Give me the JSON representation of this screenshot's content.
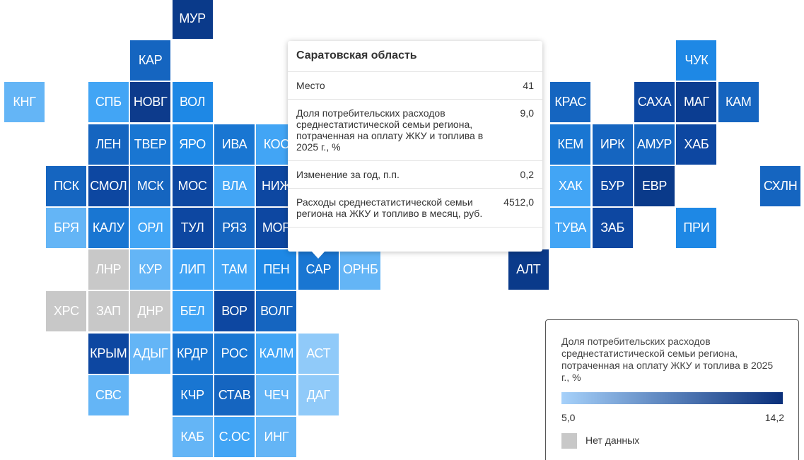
{
  "tiles": [
    {
      "label": "МУР",
      "color": "#0a3a8a"
    },
    {
      "label": "КАР",
      "color": "#1565c0"
    },
    {
      "label": "ЧУК",
      "color": "#1e88e5"
    },
    {
      "label": "КНГ",
      "color": "#64b5f6"
    },
    {
      "label": "СПБ",
      "color": "#42a5f5"
    },
    {
      "label": "НОВГ",
      "color": "#0d3b8c"
    },
    {
      "label": "ВОЛ",
      "color": "#1e88e5"
    },
    {
      "label": "КРАС",
      "color": "#1565c0"
    },
    {
      "label": "САХА",
      "color": "#0d47a1"
    },
    {
      "label": "МАГ",
      "color": "#0b3d91"
    },
    {
      "label": "КАМ",
      "color": "#1565c0"
    },
    {
      "label": "ЛЕН",
      "color": "#1565c0"
    },
    {
      "label": "ТВЕР",
      "color": "#1976d2"
    },
    {
      "label": "ЯРО",
      "color": "#1e88e5"
    },
    {
      "label": "ИВА",
      "color": "#1976d2"
    },
    {
      "label": "КОС",
      "color": "#42a5f5"
    },
    {
      "label": "КЕМ",
      "color": "#1976d2"
    },
    {
      "label": "ИРК",
      "color": "#1565c0"
    },
    {
      "label": "АМУР",
      "color": "#1565c0"
    },
    {
      "label": "ХАБ",
      "color": "#0d47a1"
    },
    {
      "label": "ПСК",
      "color": "#1565c0"
    },
    {
      "label": "СМОЛ",
      "color": "#0d47a1"
    },
    {
      "label": "МСК",
      "color": "#1565c0"
    },
    {
      "label": "МОС",
      "color": "#0d47a1"
    },
    {
      "label": "ВЛА",
      "color": "#42a5f5"
    },
    {
      "label": "НИЖ",
      "color": "#0d47a1"
    },
    {
      "label": "ХАК",
      "color": "#42a5f5"
    },
    {
      "label": "БУР",
      "color": "#0d47a1"
    },
    {
      "label": "ЕВР",
      "color": "#0a3a8a"
    },
    {
      "label": "СХЛН",
      "color": "#1565c0"
    },
    {
      "label": "БРЯ",
      "color": "#64b5f6"
    },
    {
      "label": "КАЛУ",
      "color": "#1976d2"
    },
    {
      "label": "ОРЛ",
      "color": "#42a5f5"
    },
    {
      "label": "ТУЛ",
      "color": "#0d47a1"
    },
    {
      "label": "РЯЗ",
      "color": "#1565c0"
    },
    {
      "label": "МОР",
      "color": "#0d47a1"
    },
    {
      "label": "ТУВА",
      "color": "#42a5f5"
    },
    {
      "label": "ЗАБ",
      "color": "#0d47a1"
    },
    {
      "label": "ПРИ",
      "color": "#1e88e5"
    },
    {
      "label": "ЛНР",
      "color": "#c8c8c8"
    },
    {
      "label": "КУР",
      "color": "#64b5f6"
    },
    {
      "label": "ЛИП",
      "color": "#42a5f5"
    },
    {
      "label": "ТАМ",
      "color": "#42a5f5"
    },
    {
      "label": "ПЕН",
      "color": "#1e88e5"
    },
    {
      "label": "САР",
      "color": "#1976d2"
    },
    {
      "label": "ОРНБ",
      "color": "#64b5f6"
    },
    {
      "label": "АЛТ",
      "color": "#0a3a8a"
    },
    {
      "label": "ХРС",
      "color": "#c8c8c8"
    },
    {
      "label": "ЗАП",
      "color": "#c8c8c8"
    },
    {
      "label": "ДНР",
      "color": "#c8c8c8"
    },
    {
      "label": "БЕЛ",
      "color": "#42a5f5"
    },
    {
      "label": "ВОР",
      "color": "#0d47a1"
    },
    {
      "label": "ВОЛГ",
      "color": "#1565c0"
    },
    {
      "label": "КРЫМ",
      "color": "#0d47a1"
    },
    {
      "label": "АДЫГ",
      "color": "#64b5f6"
    },
    {
      "label": "КРДР",
      "color": "#1976d2"
    },
    {
      "label": "РОС",
      "color": "#1976d2"
    },
    {
      "label": "КАЛМ",
      "color": "#42a5f5"
    },
    {
      "label": "АСТ",
      "color": "#90caf9"
    },
    {
      "label": "СВС",
      "color": "#64b5f6"
    },
    {
      "label": "КЧР",
      "color": "#1976d2"
    },
    {
      "label": "СТАВ",
      "color": "#1565c0"
    },
    {
      "label": "ЧЕЧ",
      "color": "#64b5f6"
    },
    {
      "label": "ДАГ",
      "color": "#90caf9"
    },
    {
      "label": "КАБ",
      "color": "#64b5f6"
    },
    {
      "label": "С.ОС",
      "color": "#42a5f5"
    },
    {
      "label": "ИНГ",
      "color": "#64b5f6"
    }
  ],
  "tooltip": {
    "title": "Саратовская область",
    "rows": [
      {
        "label": "Место",
        "value": "41"
      },
      {
        "label": "Доля потребительских расходов среднестатистической семьи региона, потраченная на оплату ЖКУ и топлива в 2025 г., %",
        "value": "9,0"
      },
      {
        "label": "Изменение за год, п.п.",
        "value": "0,2"
      },
      {
        "label": "Расходы среднестатистической семьи региона на ЖКУ и топливо в месяц, руб.",
        "value": "4512,0"
      }
    ]
  },
  "legend": {
    "title": "Доля потребительских расходов среднестатистической семьи региона, потраченная на оплату ЖКУ и топлива в 2025 г., %",
    "min": {
      "value": 5,
      "label": "5,0"
    },
    "max": {
      "value": 14.2,
      "label": "14,2"
    },
    "min_color": "#a6d1fa",
    "max_color": "#0a2f7a",
    "no_data_color": "#c8c8c8",
    "no_data_label": "Нет данных"
  }
}
